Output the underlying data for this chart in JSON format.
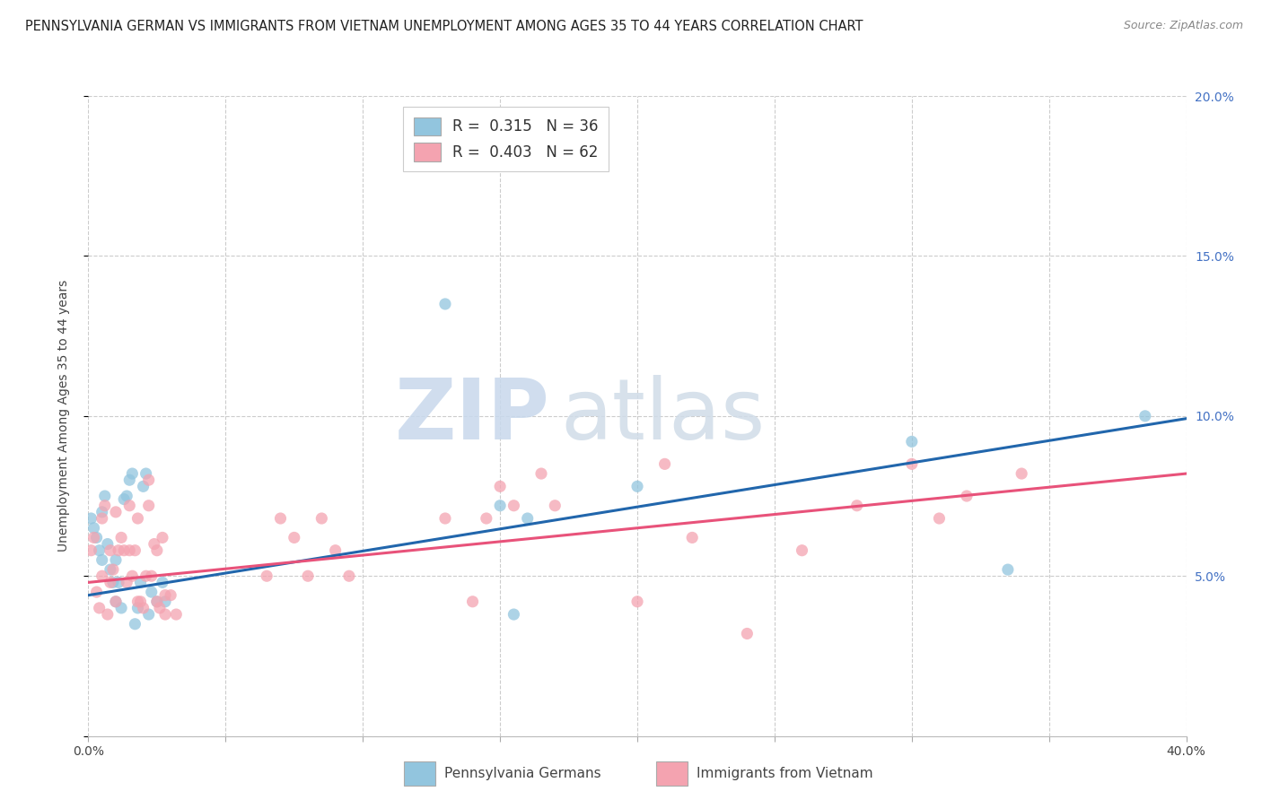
{
  "title": "PENNSYLVANIA GERMAN VS IMMIGRANTS FROM VIETNAM UNEMPLOYMENT AMONG AGES 35 TO 44 YEARS CORRELATION CHART",
  "source": "Source: ZipAtlas.com",
  "ylabel": "Unemployment Among Ages 35 to 44 years",
  "xlim": [
    0,
    0.4
  ],
  "ylim": [
    0,
    0.2
  ],
  "xticks": [
    0.0,
    0.05,
    0.1,
    0.15,
    0.2,
    0.25,
    0.3,
    0.35,
    0.4
  ],
  "xticklabels": [
    "0.0%",
    "",
    "",
    "",
    "",
    "",
    "",
    "",
    "40.0%"
  ],
  "yticks": [
    0.0,
    0.05,
    0.1,
    0.15,
    0.2
  ],
  "yticklabels_right": [
    "",
    "5.0%",
    "10.0%",
    "15.0%",
    "20.0%"
  ],
  "blue_R": 0.315,
  "blue_N": 36,
  "pink_R": 0.403,
  "pink_N": 62,
  "blue_color": "#92c5de",
  "pink_color": "#f4a3b0",
  "blue_line_color": "#2166ac",
  "pink_line_color": "#e8527a",
  "blue_label": "Pennsylvania Germans",
  "pink_label": "Immigrants from Vietnam",
  "watermark_zip": "ZIP",
  "watermark_atlas": "atlas",
  "title_fontsize": 10.5,
  "axis_label_fontsize": 10,
  "tick_fontsize": 10,
  "legend_fontsize": 12,
  "blue_intercept": 0.044,
  "blue_slope": 0.138,
  "pink_intercept": 0.048,
  "pink_slope": 0.085,
  "blue_points": [
    [
      0.001,
      0.068
    ],
    [
      0.002,
      0.065
    ],
    [
      0.003,
      0.062
    ],
    [
      0.004,
      0.058
    ],
    [
      0.005,
      0.07
    ],
    [
      0.005,
      0.055
    ],
    [
      0.006,
      0.075
    ],
    [
      0.007,
      0.06
    ],
    [
      0.008,
      0.052
    ],
    [
      0.009,
      0.048
    ],
    [
      0.01,
      0.055
    ],
    [
      0.01,
      0.042
    ],
    [
      0.011,
      0.048
    ],
    [
      0.012,
      0.04
    ],
    [
      0.013,
      0.074
    ],
    [
      0.014,
      0.075
    ],
    [
      0.015,
      0.08
    ],
    [
      0.016,
      0.082
    ],
    [
      0.017,
      0.035
    ],
    [
      0.018,
      0.04
    ],
    [
      0.019,
      0.048
    ],
    [
      0.02,
      0.078
    ],
    [
      0.021,
      0.082
    ],
    [
      0.022,
      0.038
    ],
    [
      0.023,
      0.045
    ],
    [
      0.025,
      0.042
    ],
    [
      0.027,
      0.048
    ],
    [
      0.028,
      0.042
    ],
    [
      0.13,
      0.135
    ],
    [
      0.15,
      0.072
    ],
    [
      0.155,
      0.038
    ],
    [
      0.16,
      0.068
    ],
    [
      0.2,
      0.078
    ],
    [
      0.3,
      0.092
    ],
    [
      0.335,
      0.052
    ],
    [
      0.385,
      0.1
    ]
  ],
  "pink_points": [
    [
      0.001,
      0.058
    ],
    [
      0.002,
      0.062
    ],
    [
      0.003,
      0.045
    ],
    [
      0.004,
      0.04
    ],
    [
      0.005,
      0.068
    ],
    [
      0.005,
      0.05
    ],
    [
      0.006,
      0.072
    ],
    [
      0.007,
      0.038
    ],
    [
      0.008,
      0.058
    ],
    [
      0.008,
      0.048
    ],
    [
      0.009,
      0.052
    ],
    [
      0.01,
      0.07
    ],
    [
      0.01,
      0.042
    ],
    [
      0.011,
      0.058
    ],
    [
      0.012,
      0.062
    ],
    [
      0.013,
      0.058
    ],
    [
      0.014,
      0.048
    ],
    [
      0.015,
      0.072
    ],
    [
      0.015,
      0.058
    ],
    [
      0.016,
      0.05
    ],
    [
      0.017,
      0.058
    ],
    [
      0.018,
      0.068
    ],
    [
      0.018,
      0.042
    ],
    [
      0.019,
      0.042
    ],
    [
      0.02,
      0.04
    ],
    [
      0.021,
      0.05
    ],
    [
      0.022,
      0.08
    ],
    [
      0.022,
      0.072
    ],
    [
      0.023,
      0.05
    ],
    [
      0.024,
      0.06
    ],
    [
      0.025,
      0.042
    ],
    [
      0.025,
      0.058
    ],
    [
      0.026,
      0.04
    ],
    [
      0.027,
      0.062
    ],
    [
      0.028,
      0.044
    ],
    [
      0.028,
      0.038
    ],
    [
      0.03,
      0.044
    ],
    [
      0.032,
      0.038
    ],
    [
      0.065,
      0.05
    ],
    [
      0.07,
      0.068
    ],
    [
      0.075,
      0.062
    ],
    [
      0.08,
      0.05
    ],
    [
      0.085,
      0.068
    ],
    [
      0.09,
      0.058
    ],
    [
      0.095,
      0.05
    ],
    [
      0.13,
      0.068
    ],
    [
      0.14,
      0.042
    ],
    [
      0.145,
      0.068
    ],
    [
      0.15,
      0.078
    ],
    [
      0.155,
      0.072
    ],
    [
      0.165,
      0.082
    ],
    [
      0.17,
      0.072
    ],
    [
      0.2,
      0.042
    ],
    [
      0.21,
      0.085
    ],
    [
      0.22,
      0.062
    ],
    [
      0.24,
      0.032
    ],
    [
      0.26,
      0.058
    ],
    [
      0.28,
      0.072
    ],
    [
      0.3,
      0.085
    ],
    [
      0.31,
      0.068
    ],
    [
      0.32,
      0.075
    ],
    [
      0.34,
      0.082
    ]
  ]
}
